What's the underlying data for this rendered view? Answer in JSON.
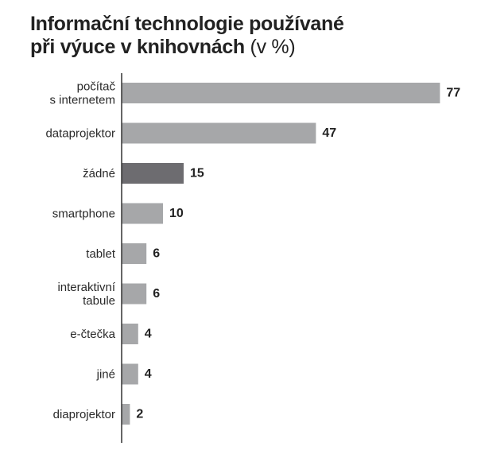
{
  "header": {
    "title_line1": "Informační technologie používané",
    "title_line2": "při výuce v knihovnách",
    "unit": "(v %)"
  },
  "colors": {
    "bar": "#a6a7a9",
    "highlight": "#6d6c70",
    "axis": "#333333"
  },
  "chart_data": {
    "type": "bar",
    "orientation": "horizontal",
    "title": "Informační technologie používané při výuce v knihovnách (v %)",
    "categories": [
      [
        "počítač",
        "s internetem"
      ],
      [
        "dataprojektor"
      ],
      [
        "žádné"
      ],
      [
        "smartphone"
      ],
      [
        "tablet"
      ],
      [
        "interaktivní",
        "tabule"
      ],
      [
        "e-čtečka"
      ],
      [
        "jiné"
      ],
      [
        "diaprojektor"
      ]
    ],
    "values": [
      77,
      47,
      15,
      10,
      6,
      6,
      4,
      4,
      2
    ],
    "highlight_index": 2,
    "xlim": [
      0,
      80
    ],
    "grid": false
  }
}
